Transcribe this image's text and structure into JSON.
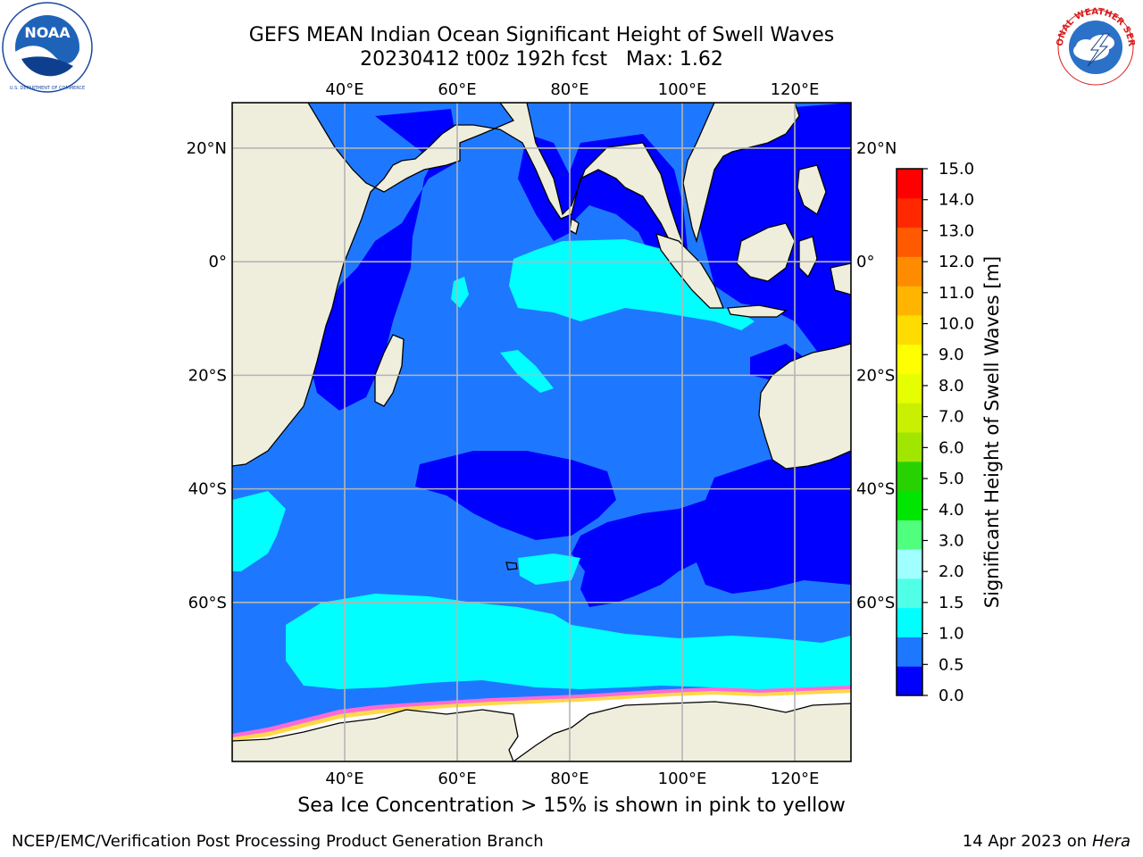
{
  "title": {
    "line1": "GEFS MEAN Indian Ocean Significant Height of Swell Waves",
    "line2": "20230412 t00z 192h fcst   Max: 1.62"
  },
  "logos": {
    "left": {
      "icon": "noaa-logo-icon",
      "text": "NOAA",
      "ring_text": "NATIONAL OCEANIC AND ATMOSPHERIC ADMINISTRATION · U.S. DEPARTMENT OF COMMERCE"
    },
    "right": {
      "icon": "nws-logo-icon",
      "ring_text": "NATIONAL WEATHER SERVICE"
    }
  },
  "map": {
    "projection": "plate-carree",
    "lon_range": [
      20,
      130
    ],
    "lat_range": [
      -88,
      28
    ],
    "lon_ticks": [
      "40°E",
      "60°E",
      "80°E",
      "100°E",
      "120°E"
    ],
    "lat_ticks": [
      "20°N",
      "0°",
      "20°S",
      "40°S",
      "60°S"
    ],
    "grid": true,
    "ocean_background": "#1e78ff",
    "land_color": "#efeedd",
    "sea_ice_color": "#ffffff"
  },
  "colorbar": {
    "label": "Significant Height of Swell Waves [m]",
    "ticks": [
      "0.0",
      "0.5",
      "1.0",
      "1.5",
      "2.0",
      "3.0",
      "4.0",
      "5.0",
      "6.0",
      "7.0",
      "8.0",
      "9.0",
      "10.0",
      "11.0",
      "12.0",
      "13.0",
      "14.0",
      "15.0"
    ],
    "colors": [
      "#0000ff",
      "#1e78ff",
      "#00ffff",
      "#50ffe6",
      "#a0ffff",
      "#50ff7d",
      "#00e600",
      "#28d200",
      "#a0e600",
      "#c8f000",
      "#e6ff00",
      "#ffff00",
      "#ffdc00",
      "#ffb400",
      "#ff8c00",
      "#ff5a00",
      "#ff2800",
      "#ff0000"
    ]
  },
  "caption": "Sea Ice Concentration > 15% is shown in pink to yellow",
  "footer": {
    "left": "NCEP/EMC/Verification Post Processing Product Generation Branch",
    "right_prefix": "14 Apr 2023 on ",
    "right_host": "Hera"
  }
}
